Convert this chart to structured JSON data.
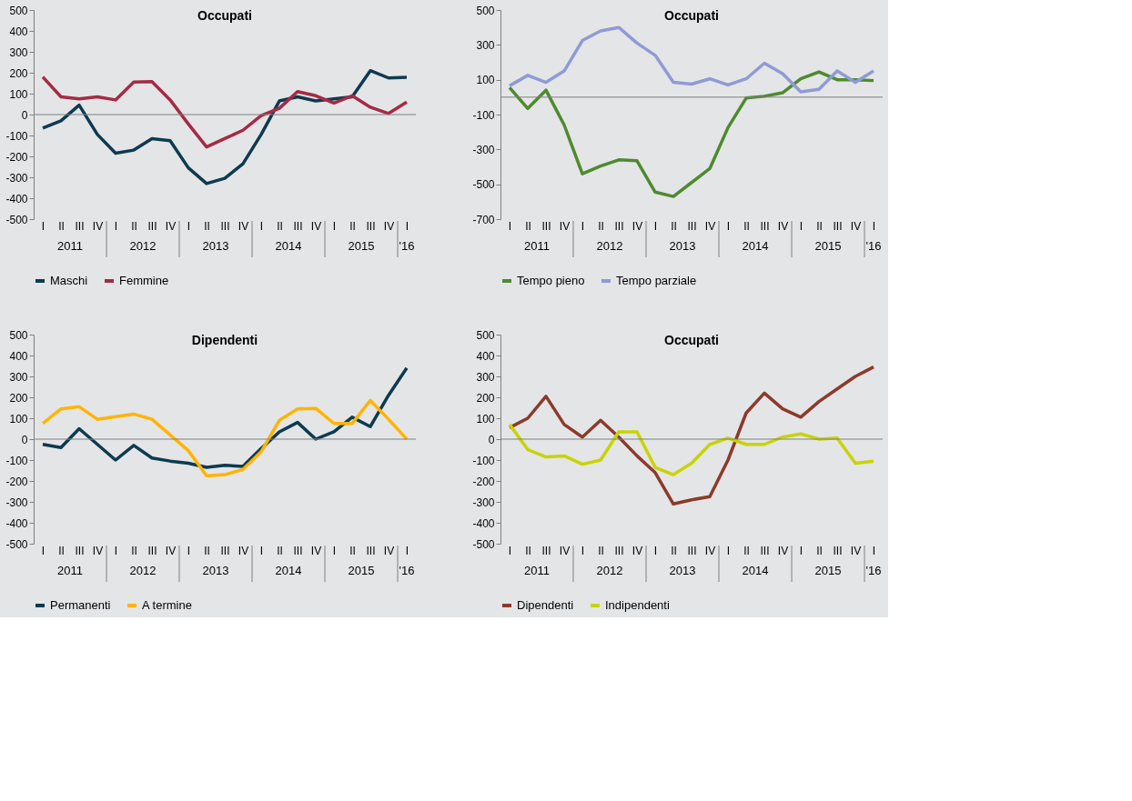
{
  "chart_data": [
    {
      "type": "line",
      "title": "Occupati",
      "categories": [
        "I",
        "II",
        "III",
        "IV",
        "I",
        "II",
        "III",
        "IV",
        "I",
        "II",
        "III",
        "IV",
        "I",
        "II",
        "III",
        "IV",
        "I",
        "II",
        "III",
        "IV",
        "I"
      ],
      "annotations": [
        "2011",
        "2012",
        "2013",
        "2014",
        "2015",
        "'16"
      ],
      "ylim": [
        -500,
        500
      ],
      "yticks": [
        -500,
        -400,
        -300,
        -200,
        -100,
        0,
        100,
        200,
        300,
        400,
        500
      ],
      "ref_lines": [
        {
          "axis": "y",
          "value": 0,
          "color": "#808080"
        }
      ],
      "legend": "bottom",
      "grid": false,
      "marker": "none",
      "line_style": "solid",
      "series": [
        {
          "name": "Maschi",
          "color": "#0d3a4f",
          "values": [
            -65,
            -30,
            45,
            -95,
            -185,
            -170,
            -115,
            -125,
            -255,
            -330,
            -305,
            -235,
            -95,
            65,
            85,
            65,
            75,
            85,
            210,
            175,
            178
          ]
        },
        {
          "name": "Femmine",
          "color": "#a52a45",
          "values": [
            180,
            85,
            75,
            85,
            70,
            155,
            158,
            70,
            -45,
            -155,
            -115,
            -75,
            -5,
            30,
            110,
            90,
            55,
            90,
            35,
            5,
            60
          ]
        }
      ]
    },
    {
      "type": "line",
      "title": "Occupati",
      "categories": [
        "I",
        "II",
        "III",
        "IV",
        "I",
        "II",
        "III",
        "IV",
        "I",
        "II",
        "III",
        "IV",
        "I",
        "II",
        "III",
        "IV",
        "I",
        "II",
        "III",
        "IV",
        "I"
      ],
      "annotations": [
        "2011",
        "2012",
        "2013",
        "2014",
        "2015",
        "'16"
      ],
      "ylim": [
        -700,
        500
      ],
      "yticks": [
        -700,
        -500,
        -300,
        -100,
        100,
        300,
        500
      ],
      "ref_lines": [
        {
          "axis": "y",
          "value": 0,
          "color": "#808080"
        }
      ],
      "legend": "bottom",
      "grid": false,
      "marker": "none",
      "line_style": "solid",
      "series": [
        {
          "name": "Tempo pieno",
          "color": "#4e8a2e",
          "values": [
            55,
            -65,
            40,
            -160,
            -440,
            -395,
            -360,
            -365,
            -545,
            -570,
            -490,
            -410,
            -175,
            -5,
            5,
            25,
            105,
            145,
            100,
            100,
            95
          ]
        },
        {
          "name": "Tempo parziale",
          "color": "#8f9bd4",
          "values": [
            65,
            125,
            85,
            150,
            325,
            380,
            400,
            310,
            240,
            85,
            75,
            105,
            70,
            105,
            195,
            135,
            30,
            45,
            150,
            85,
            150
          ]
        }
      ]
    },
    {
      "type": "line",
      "title": "Dipendenti",
      "categories": [
        "I",
        "II",
        "III",
        "IV",
        "I",
        "II",
        "III",
        "IV",
        "I",
        "II",
        "III",
        "IV",
        "I",
        "II",
        "III",
        "IV",
        "I",
        "II",
        "III",
        "IV",
        "I"
      ],
      "annotations": [
        "2011",
        "2012",
        "2013",
        "2014",
        "2015",
        "'16"
      ],
      "ylim": [
        -500,
        500
      ],
      "yticks": [
        -500,
        -400,
        -300,
        -200,
        -100,
        0,
        100,
        200,
        300,
        400,
        500
      ],
      "ref_lines": [
        {
          "axis": "y",
          "value": 0,
          "color": "#808080"
        }
      ],
      "legend": "bottom",
      "grid": false,
      "marker": "none",
      "line_style": "solid",
      "series": [
        {
          "name": "Permanenti",
          "color": "#0d3a4f",
          "values": [
            -25,
            -40,
            50,
            -25,
            -100,
            -30,
            -90,
            -105,
            -115,
            -135,
            -125,
            -130,
            -45,
            35,
            80,
            0,
            35,
            105,
            60,
            210,
            340
          ]
        },
        {
          "name": "A termine",
          "color": "#ffb400",
          "values": [
            75,
            145,
            155,
            95,
            108,
            120,
            95,
            20,
            -55,
            -175,
            -170,
            -145,
            -60,
            90,
            145,
            147,
            75,
            75,
            185,
            95,
            0
          ]
        }
      ]
    },
    {
      "type": "line",
      "title": "Occupati",
      "categories": [
        "I",
        "II",
        "III",
        "IV",
        "I",
        "II",
        "III",
        "IV",
        "I",
        "II",
        "III",
        "IV",
        "I",
        "II",
        "III",
        "IV",
        "I",
        "II",
        "III",
        "IV",
        "I"
      ],
      "annotations": [
        "2011",
        "2012",
        "2013",
        "2014",
        "2015",
        "'16"
      ],
      "ylim": [
        -500,
        500
      ],
      "yticks": [
        -500,
        -400,
        -300,
        -200,
        -100,
        0,
        100,
        200,
        300,
        400,
        500
      ],
      "ref_lines": [
        {
          "axis": "y",
          "value": 0,
          "color": "#808080"
        }
      ],
      "legend": "bottom",
      "grid": false,
      "marker": "none",
      "line_style": "solid",
      "series": [
        {
          "name": "Dipendenti",
          "color": "#8b3a2a",
          "values": [
            55,
            100,
            205,
            70,
            10,
            90,
            10,
            -80,
            -160,
            -310,
            -290,
            -275,
            -100,
            125,
            220,
            145,
            105,
            180,
            240,
            300,
            345
          ]
        },
        {
          "name": "Indipendenti",
          "color": "#c8d400",
          "values": [
            70,
            -50,
            -85,
            -80,
            -120,
            -100,
            35,
            35,
            -135,
            -170,
            -115,
            -25,
            5,
            -25,
            -25,
            10,
            25,
            0,
            5,
            -115,
            -105
          ]
        }
      ]
    }
  ]
}
